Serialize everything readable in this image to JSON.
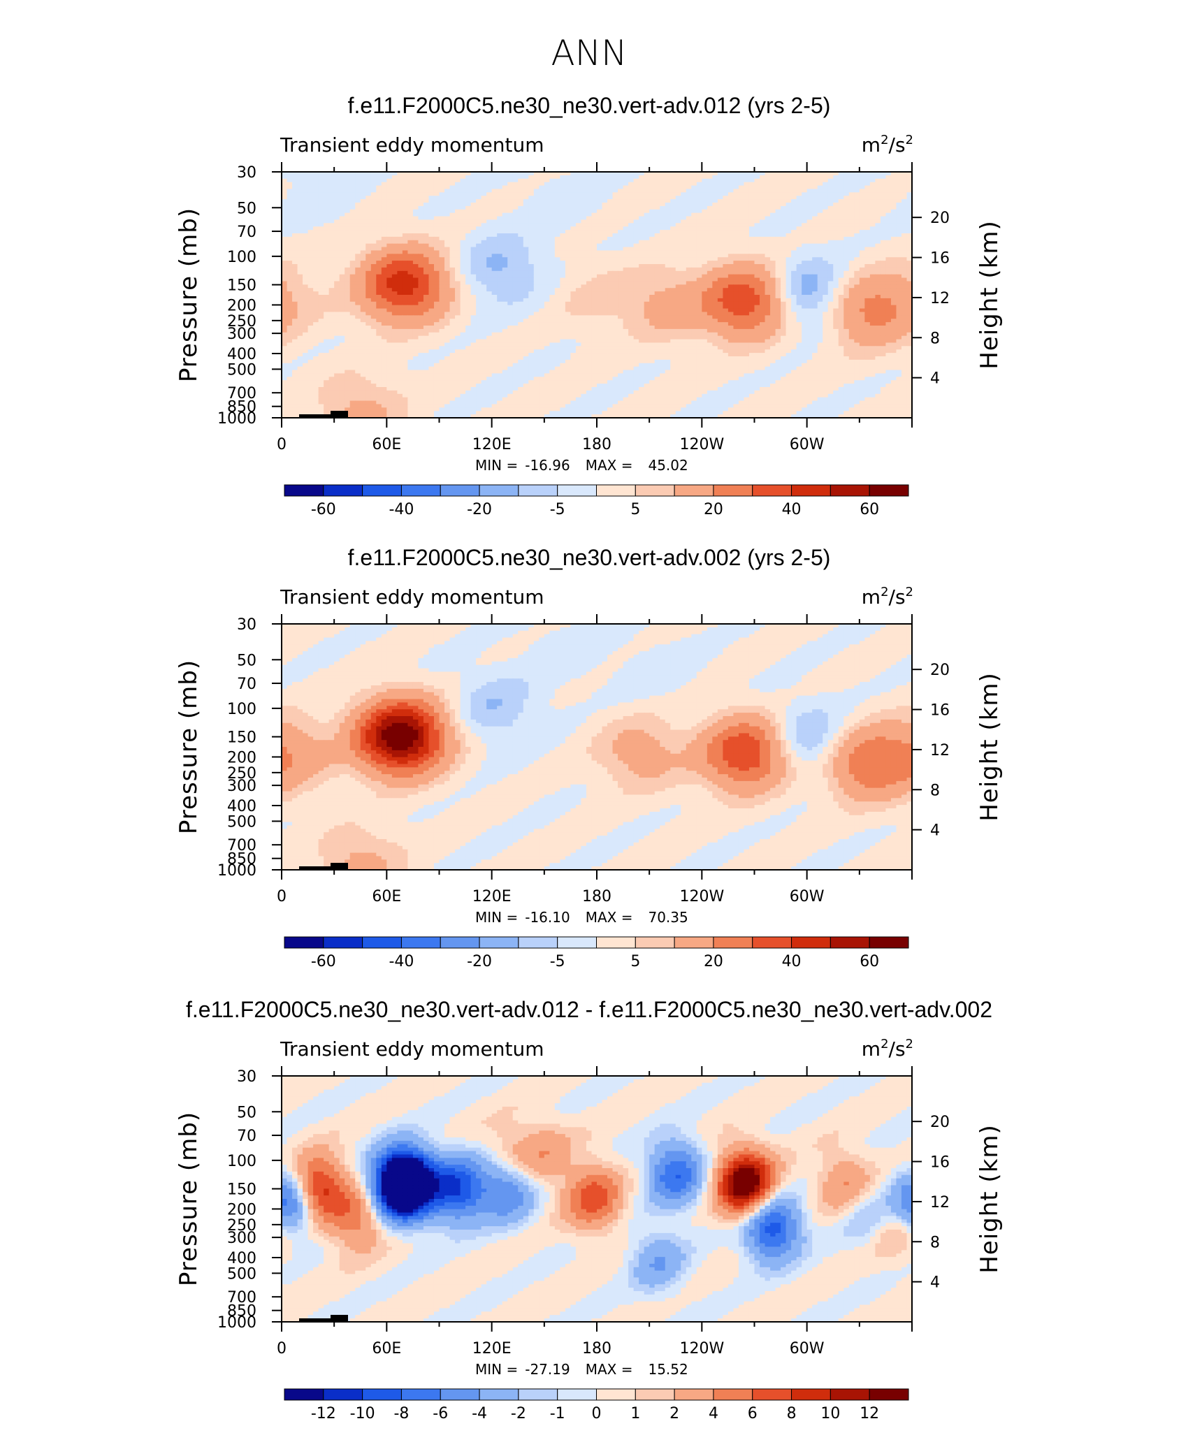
{
  "figure_title": "ANN",
  "colors": {
    "diverging_scale": [
      "#08088a",
      "#0a2ec8",
      "#1e5ae8",
      "#3c78f0",
      "#6496f0",
      "#8cb4f5",
      "#b9d1fa",
      "#d9e8fc",
      "#ffe5d2",
      "#fbcbb3",
      "#f7a884",
      "#f08055",
      "#e6502b",
      "#d02d0c",
      "#a81404",
      "#780000"
    ]
  },
  "chart_data": [
    {
      "type": "heatmap",
      "title": "f.e11.F2000C5.ne30_ne30.vert-adv.012 (yrs 2-5)",
      "subtitle_left": "Transient eddy momentum",
      "units_base": "m",
      "units_exp1": "2",
      "units_mid": "/s",
      "units_exp2": "2",
      "ylabel": "Pressure (mb)",
      "ylabel_right": "Height (km)",
      "x_ticks": [
        "0",
        "60E",
        "120E",
        "180",
        "120W",
        "60W"
      ],
      "y_ticks": [
        "30",
        "50",
        "70",
        "100",
        "150",
        "200",
        "250",
        "300",
        "400",
        "500",
        "700",
        "850",
        "1000"
      ],
      "y_right_ticks": [
        "20",
        "16",
        "12",
        "8",
        "4"
      ],
      "min_label": "MIN =",
      "min_value": "-16.96",
      "max_label": "MAX =",
      "max_value": "45.02",
      "colorbar_labels": [
        "-60",
        "-40",
        "-20",
        "-5",
        "5",
        "20",
        "40",
        "60"
      ],
      "features": [
        {
          "x": 70,
          "p": 150,
          "v": 45
        },
        {
          "x": 0,
          "p": 180,
          "v": 8
        },
        {
          "x": 125,
          "p": 120,
          "v": -12
        },
        {
          "x": 180,
          "p": 180,
          "v": 6
        },
        {
          "x": 220,
          "p": 200,
          "v": 12
        },
        {
          "x": 265,
          "p": 190,
          "v": 38
        },
        {
          "x": 300,
          "p": 170,
          "v": -17
        },
        {
          "x": 335,
          "p": 220,
          "v": 22
        },
        {
          "x": 45,
          "p": 900,
          "v": 12
        },
        {
          "x": 160,
          "p": 45,
          "v": -3
        },
        {
          "x": 20,
          "p": 40,
          "v": -3
        }
      ]
    },
    {
      "type": "heatmap",
      "title": "f.e11.F2000C5.ne30_ne30.vert-adv.002 (yrs 2-5)",
      "subtitle_left": "Transient eddy momentum",
      "units_base": "m",
      "units_exp1": "2",
      "units_mid": "/s",
      "units_exp2": "2",
      "ylabel": "Pressure (mb)",
      "ylabel_right": "Height (km)",
      "x_ticks": [
        "0",
        "60E",
        "120E",
        "180",
        "120W",
        "60W"
      ],
      "y_ticks": [
        "30",
        "50",
        "70",
        "100",
        "150",
        "200",
        "250",
        "300",
        "400",
        "500",
        "700",
        "850",
        "1000"
      ],
      "y_right_ticks": [
        "20",
        "16",
        "12",
        "8",
        "4"
      ],
      "min_label": "MIN =",
      "min_value": "-16.10",
      "max_label": "MAX =",
      "max_value": "70.35",
      "colorbar_labels": [
        "-60",
        "-40",
        "-20",
        "-5",
        "5",
        "20",
        "40",
        "60"
      ],
      "features": [
        {
          "x": 68,
          "p": 150,
          "v": 70
        },
        {
          "x": 5,
          "p": 190,
          "v": 15
        },
        {
          "x": 122,
          "p": 100,
          "v": -10
        },
        {
          "x": 205,
          "p": 190,
          "v": 14
        },
        {
          "x": 265,
          "p": 190,
          "v": 40
        },
        {
          "x": 300,
          "p": 160,
          "v": -14
        },
        {
          "x": 335,
          "p": 220,
          "v": 28
        },
        {
          "x": 45,
          "p": 900,
          "v": 12
        },
        {
          "x": 160,
          "p": 45,
          "v": -3
        },
        {
          "x": 215,
          "p": 60,
          "v": -3
        }
      ]
    },
    {
      "type": "heatmap",
      "title": "f.e11.F2000C5.ne30_ne30.vert-adv.012 - f.e11.F2000C5.ne30_ne30.vert-adv.002",
      "subtitle_left": "Transient eddy momentum",
      "units_base": "m",
      "units_exp1": "2",
      "units_mid": "/s",
      "units_exp2": "2",
      "ylabel": "Pressure (mb)",
      "ylabel_right": "Height (km)",
      "x_ticks": [
        "0",
        "60E",
        "120E",
        "180",
        "120W",
        "60W"
      ],
      "y_ticks": [
        "30",
        "50",
        "70",
        "100",
        "150",
        "200",
        "250",
        "300",
        "400",
        "500",
        "700",
        "850",
        "1000"
      ],
      "y_right_ticks": [
        "20",
        "16",
        "12",
        "8",
        "4"
      ],
      "min_label": "MIN =",
      "min_value": "-27.19",
      "max_label": "MAX =",
      "max_value": "15.52",
      "colorbar_labels": [
        "-12",
        "-10",
        "-8",
        "-6",
        "-4",
        "-2",
        "-1",
        "0",
        "1",
        "2",
        "4",
        "6",
        "8",
        "10",
        "12"
      ],
      "features": [
        {
          "x": 5,
          "p": 180,
          "v": -9
        },
        {
          "x": 20,
          "p": 150,
          "v": 10
        },
        {
          "x": 43,
          "p": 230,
          "v": 5
        },
        {
          "x": 70,
          "p": 140,
          "v": -27
        },
        {
          "x": 100,
          "p": 150,
          "v": -10
        },
        {
          "x": 128,
          "p": 150,
          "v": -7
        },
        {
          "x": 130,
          "p": 100,
          "v": 3
        },
        {
          "x": 178,
          "p": 170,
          "v": 7
        },
        {
          "x": 225,
          "p": 120,
          "v": -8
        },
        {
          "x": 215,
          "p": 420,
          "v": -4
        },
        {
          "x": 265,
          "p": 140,
          "v": 15
        },
        {
          "x": 280,
          "p": 260,
          "v": -10
        },
        {
          "x": 322,
          "p": 140,
          "v": 4
        },
        {
          "x": 335,
          "p": 220,
          "v": -3
        },
        {
          "x": 350,
          "p": 260,
          "v": 3
        },
        {
          "x": 150,
          "p": 90,
          "v": 3
        }
      ]
    }
  ]
}
